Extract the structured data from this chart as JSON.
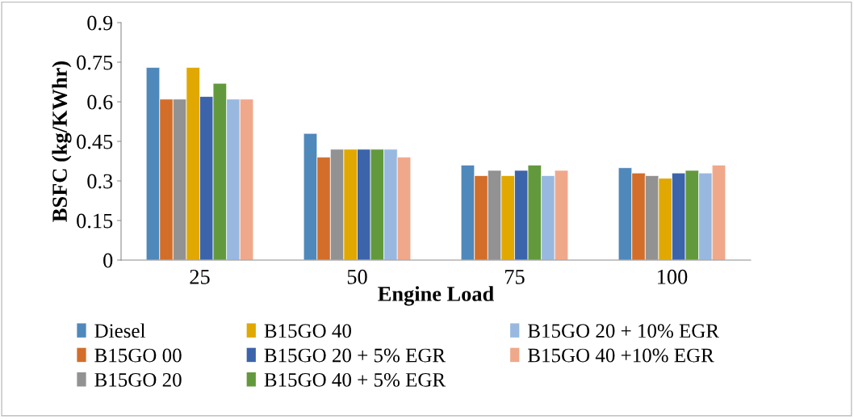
{
  "chart_data": {
    "type": "bar",
    "xlabel": "Engine Load",
    "ylabel": "BSFC (kg/KWhr)",
    "categories": [
      "25",
      "50",
      "75",
      "100"
    ],
    "ylim": [
      0,
      0.9
    ],
    "yticks": [
      0,
      0.15,
      0.3,
      0.45,
      0.6,
      0.75,
      0.9
    ],
    "grid": false,
    "legend": "bottom",
    "series": [
      {
        "name": "Diesel",
        "color": "#4f88bb",
        "values": [
          0.73,
          0.48,
          0.36,
          0.35
        ]
      },
      {
        "name": "B15GO 00",
        "color": "#d26e2a",
        "values": [
          0.61,
          0.39,
          0.32,
          0.33
        ]
      },
      {
        "name": "B15GO 20",
        "color": "#929292",
        "values": [
          0.61,
          0.42,
          0.34,
          0.32
        ]
      },
      {
        "name": "B15GO 40",
        "color": "#e0a800",
        "values": [
          0.73,
          0.42,
          0.32,
          0.31
        ]
      },
      {
        "name": "B15GO 20 + 5% EGR",
        "color": "#3c64ab",
        "values": [
          0.62,
          0.42,
          0.34,
          0.33
        ]
      },
      {
        "name": "B15GO 40 + 5% EGR",
        "color": "#63993d",
        "values": [
          0.67,
          0.42,
          0.36,
          0.34
        ]
      },
      {
        "name": "B15GO 20 + 10% EGR",
        "color": "#98b8df",
        "values": [
          0.61,
          0.42,
          0.32,
          0.33
        ]
      },
      {
        "name": "B15GO 40 +10% EGR",
        "color": "#f0a88a",
        "values": [
          0.61,
          0.39,
          0.34,
          0.36
        ]
      }
    ]
  }
}
